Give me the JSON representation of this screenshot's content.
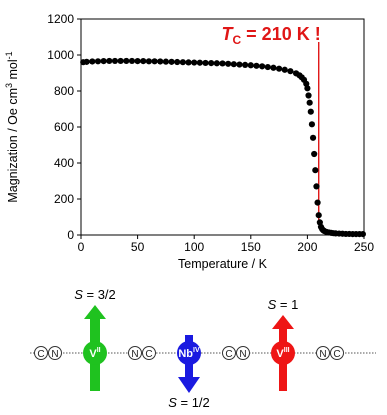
{
  "chart_data": {
    "type": "scatter",
    "xlabel": "Temperature / K",
    "ylabel": "Magnization / Oe cm³ mol⁻¹",
    "ylabel_parts": {
      "main": "Magnization / Oe cm",
      "exp1": "3",
      "mid": " mol",
      "exp2": "-1"
    },
    "xlim": [
      0,
      250
    ],
    "ylim": [
      0,
      1200
    ],
    "xticks": [
      0,
      50,
      100,
      150,
      200,
      250
    ],
    "yticks": [
      0,
      200,
      400,
      600,
      800,
      1000,
      1200
    ],
    "marker_color": "#000000",
    "series": [
      {
        "x": [
          2,
          5,
          10,
          15,
          20,
          25,
          30,
          35,
          40,
          45,
          50,
          55,
          60,
          65,
          70,
          75,
          80,
          85,
          90,
          95,
          100,
          105,
          110,
          115,
          120,
          125,
          130,
          135,
          140,
          145,
          150,
          155,
          160,
          165,
          170,
          175,
          180,
          185,
          190,
          193,
          195,
          197,
          199,
          200,
          201,
          202,
          203,
          204,
          205,
          206,
          207,
          208,
          209,
          210,
          211,
          212,
          213,
          214,
          215,
          217,
          219,
          221,
          223,
          225,
          228,
          231,
          234,
          237,
          240,
          243,
          246,
          249
        ],
        "y": [
          960,
          962,
          964,
          965,
          966,
          967,
          967,
          967,
          967,
          967,
          966,
          966,
          965,
          965,
          964,
          963,
          962,
          961,
          960,
          959,
          958,
          957,
          956,
          955,
          954,
          953,
          951,
          949,
          947,
          945,
          943,
          940,
          937,
          933,
          929,
          924,
          918,
          910,
          898,
          887,
          876,
          862,
          840,
          815,
          775,
          735,
          685,
          615,
          540,
          450,
          360,
          270,
          180,
          110,
          70,
          45,
          33,
          26,
          22,
          17,
          14,
          12,
          10,
          9,
          8,
          7,
          6,
          6,
          5,
          5,
          5,
          5
        ]
      }
    ],
    "annotation": {
      "label": "T",
      "subscript": "C",
      "rest": " = 210 K !",
      "x": 210,
      "color": "#e01616"
    }
  },
  "diagram": {
    "chain_units": [
      {
        "type": "cn",
        "letters": [
          "C",
          "N"
        ]
      },
      {
        "type": "metal",
        "symbol": "V",
        "oxidation": "II",
        "color": "#1fc21f",
        "spin": "up",
        "spin_label": "S = 3/2"
      },
      {
        "type": "cn",
        "letters": [
          "N",
          "C"
        ]
      },
      {
        "type": "metal",
        "symbol": "Nb",
        "oxidation": "IV",
        "color": "#1a1ae0",
        "spin": "down",
        "spin_label": "S = 1/2"
      },
      {
        "type": "cn",
        "letters": [
          "C",
          "N"
        ]
      },
      {
        "type": "metal",
        "symbol": "V",
        "oxidation": "III",
        "color": "#ee1515",
        "spin": "up",
        "spin_label": "S = 1"
      },
      {
        "type": "cn",
        "letters": [
          "N",
          "C"
        ]
      }
    ]
  }
}
